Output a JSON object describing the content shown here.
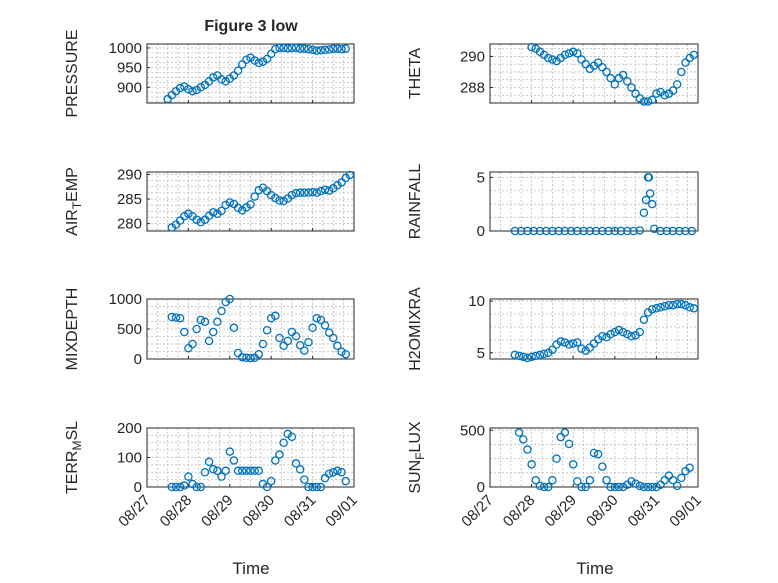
{
  "figure": {
    "title": "Figure 3 low",
    "xlabel": "Time",
    "x_ticks": [
      "08/27",
      "08/28",
      "08/29",
      "08/30",
      "08/31",
      "09/01"
    ]
  },
  "chart_data": [
    {
      "type": "scatter",
      "title": "Figure 3 low",
      "ylabel": "PRESSURE",
      "x_range": [
        "08/27",
        "09/01"
      ],
      "ylim": [
        860,
        1010
      ],
      "yticks": [
        900,
        950,
        1000
      ],
      "grid": true,
      "marker": "circle",
      "color": "#0072bd",
      "x": [
        0.5,
        0.6,
        0.7,
        0.8,
        0.9,
        1.0,
        1.1,
        1.2,
        1.3,
        1.4,
        1.5,
        1.6,
        1.7,
        1.8,
        1.9,
        2.0,
        2.1,
        2.2,
        2.3,
        2.4,
        2.5,
        2.6,
        2.7,
        2.8,
        2.9,
        3.0,
        3.1,
        3.2,
        3.3,
        3.4,
        3.5,
        3.6,
        3.7,
        3.8,
        3.9,
        4.0,
        4.1,
        4.2,
        4.3,
        4.4,
        4.5,
        4.6,
        4.7,
        4.8
      ],
      "y": [
        870,
        880,
        890,
        898,
        902,
        895,
        890,
        893,
        900,
        906,
        915,
        925,
        930,
        920,
        915,
        922,
        930,
        942,
        958,
        970,
        975,
        968,
        962,
        965,
        972,
        985,
        997,
        1000,
        1000,
        999,
        1000,
        1000,
        998,
        998,
        997,
        995,
        993,
        994,
        995,
        996,
        998,
        998,
        997,
        998
      ]
    },
    {
      "type": "scatter",
      "ylabel": "THETA",
      "x_range": [
        "08/27",
        "09/01"
      ],
      "ylim": [
        287,
        290.8
      ],
      "yticks": [
        288,
        290
      ],
      "grid": true,
      "marker": "circle",
      "color": "#0072bd",
      "x": [
        1.0,
        1.1,
        1.2,
        1.3,
        1.4,
        1.5,
        1.6,
        1.7,
        1.8,
        1.9,
        2.0,
        2.1,
        2.2,
        2.3,
        2.4,
        2.5,
        2.6,
        2.7,
        2.8,
        2.9,
        3.0,
        3.1,
        3.2,
        3.3,
        3.4,
        3.5,
        3.6,
        3.7,
        3.8,
        3.9,
        4.0,
        4.1,
        4.2,
        4.3,
        4.4,
        4.5,
        4.6,
        4.7,
        4.8,
        4.9
      ],
      "y": [
        290.6,
        290.5,
        290.3,
        290.1,
        289.9,
        289.8,
        289.7,
        289.9,
        290.1,
        290.2,
        290.3,
        290.2,
        289.8,
        289.5,
        289.2,
        289.4,
        289.6,
        289.3,
        289.0,
        288.6,
        288.2,
        288.6,
        288.8,
        288.4,
        288.0,
        287.6,
        287.3,
        287.1,
        287.1,
        287.2,
        287.6,
        287.7,
        287.5,
        287.6,
        287.8,
        288.2,
        289.0,
        289.6,
        289.9,
        290.1
      ]
    },
    {
      "type": "scatter",
      "ylabel": "AIR_TEMP",
      "x_range": [
        "08/27",
        "09/01"
      ],
      "ylim": [
        278.5,
        290.5
      ],
      "yticks": [
        280,
        285,
        290
      ],
      "grid": true,
      "marker": "circle",
      "color": "#0072bd",
      "x": [
        0.6,
        0.7,
        0.8,
        0.9,
        1.0,
        1.1,
        1.2,
        1.3,
        1.4,
        1.5,
        1.6,
        1.7,
        1.8,
        1.9,
        2.0,
        2.1,
        2.2,
        2.3,
        2.4,
        2.5,
        2.6,
        2.7,
        2.8,
        2.9,
        3.0,
        3.1,
        3.2,
        3.3,
        3.4,
        3.5,
        3.6,
        3.7,
        3.8,
        3.9,
        4.0,
        4.1,
        4.2,
        4.3,
        4.4,
        4.5,
        4.6,
        4.7,
        4.8,
        4.9
      ],
      "y": [
        279.2,
        279.8,
        280.6,
        281.5,
        282.0,
        281.5,
        280.8,
        280.3,
        280.8,
        281.6,
        282.3,
        282.0,
        282.6,
        283.8,
        284.3,
        284.0,
        283.2,
        282.7,
        283.3,
        283.9,
        285.5,
        286.8,
        287.3,
        286.6,
        285.8,
        285.2,
        284.7,
        284.6,
        285.1,
        285.8,
        286.2,
        286.3,
        286.3,
        286.3,
        286.4,
        286.3,
        286.6,
        286.9,
        286.7,
        287.2,
        287.8,
        288.4,
        289.3,
        289.9
      ]
    },
    {
      "type": "scatter",
      "ylabel": "RAINFALL",
      "x_range": [
        "08/27",
        "09/01"
      ],
      "ylim": [
        0,
        5.5
      ],
      "yticks": [
        0,
        5
      ],
      "grid": true,
      "marker": "circle",
      "color": "#0072bd",
      "x": [
        0.6,
        0.75,
        0.9,
        1.05,
        1.2,
        1.35,
        1.5,
        1.65,
        1.8,
        1.95,
        2.1,
        2.25,
        2.4,
        2.55,
        2.7,
        2.85,
        3.0,
        3.15,
        3.3,
        3.45,
        3.6,
        3.7,
        3.75,
        3.8,
        3.82,
        3.85,
        3.9,
        3.95,
        4.1,
        4.25,
        4.4,
        4.55,
        4.7,
        4.85
      ],
      "y": [
        0,
        0,
        0,
        0,
        0,
        0,
        0,
        0,
        0,
        0,
        0,
        0,
        0,
        0,
        0,
        0,
        0,
        0,
        0,
        0,
        0.05,
        1.7,
        2.9,
        5.0,
        5.0,
        3.5,
        2.5,
        0.2,
        0,
        0,
        0,
        0,
        0,
        0
      ]
    },
    {
      "type": "scatter",
      "ylabel": "MIXDEPTH",
      "x_range": [
        "08/27",
        "09/01"
      ],
      "ylim": [
        0,
        1000
      ],
      "yticks": [
        0,
        500,
        1000
      ],
      "grid": true,
      "marker": "circle",
      "color": "#0072bd",
      "x": [
        0.6,
        0.7,
        0.8,
        0.9,
        1.0,
        1.1,
        1.2,
        1.3,
        1.4,
        1.5,
        1.6,
        1.7,
        1.8,
        1.9,
        2.0,
        2.1,
        2.2,
        2.3,
        2.4,
        2.5,
        2.6,
        2.7,
        2.8,
        2.9,
        3.0,
        3.1,
        3.2,
        3.3,
        3.4,
        3.5,
        3.6,
        3.7,
        3.8,
        3.9,
        4.0,
        4.1,
        4.2,
        4.3,
        4.4,
        4.5,
        4.6,
        4.7,
        4.8
      ],
      "y": [
        700,
        690,
        680,
        450,
        180,
        250,
        500,
        650,
        620,
        300,
        450,
        620,
        800,
        950,
        1000,
        520,
        100,
        30,
        20,
        15,
        20,
        80,
        250,
        480,
        680,
        720,
        350,
        220,
        300,
        450,
        380,
        230,
        140,
        280,
        520,
        680,
        650,
        560,
        440,
        350,
        220,
        120,
        80
      ]
    },
    {
      "type": "scatter",
      "ylabel": "H2OMIXRA",
      "x_range": [
        "08/27",
        "09/01"
      ],
      "ylim": [
        4.4,
        10.2
      ],
      "yticks": [
        5,
        10
      ],
      "grid": true,
      "marker": "circle",
      "color": "#0072bd",
      "x": [
        0.6,
        0.7,
        0.8,
        0.9,
        1.0,
        1.1,
        1.2,
        1.3,
        1.4,
        1.5,
        1.6,
        1.7,
        1.8,
        1.9,
        2.0,
        2.1,
        2.2,
        2.3,
        2.4,
        2.5,
        2.6,
        2.7,
        2.8,
        2.9,
        3.0,
        3.1,
        3.2,
        3.3,
        3.4,
        3.5,
        3.6,
        3.7,
        3.8,
        3.9,
        4.0,
        4.1,
        4.2,
        4.3,
        4.4,
        4.5,
        4.6,
        4.7,
        4.8,
        4.9
      ],
      "y": [
        4.8,
        4.7,
        4.6,
        4.5,
        4.6,
        4.7,
        4.8,
        4.9,
        5.0,
        5.3,
        5.8,
        6.1,
        6.0,
        5.8,
        5.9,
        6.0,
        5.4,
        5.2,
        5.5,
        5.9,
        6.3,
        6.6,
        6.5,
        6.8,
        7.0,
        7.2,
        7.0,
        6.8,
        6.6,
        6.7,
        7.0,
        8.2,
        8.9,
        9.2,
        9.3,
        9.4,
        9.5,
        9.6,
        9.6,
        9.7,
        9.7,
        9.6,
        9.4,
        9.3
      ]
    },
    {
      "type": "scatter",
      "ylabel": "TERR_MSL",
      "x_range": [
        "08/27",
        "09/01"
      ],
      "ylim": [
        0,
        200
      ],
      "yticks": [
        0,
        100,
        200
      ],
      "grid": true,
      "marker": "circle",
      "color": "#0072bd",
      "x": [
        0.6,
        0.7,
        0.8,
        0.9,
        1.0,
        1.1,
        1.2,
        1.3,
        1.4,
        1.5,
        1.6,
        1.7,
        1.8,
        1.9,
        2.0,
        2.1,
        2.2,
        2.3,
        2.4,
        2.5,
        2.6,
        2.7,
        2.8,
        2.9,
        3.0,
        3.1,
        3.2,
        3.3,
        3.4,
        3.5,
        3.6,
        3.7,
        3.8,
        3.9,
        4.0,
        4.1,
        4.2,
        4.3,
        4.4,
        4.5,
        4.6,
        4.7,
        4.8
      ],
      "y": [
        0,
        0,
        0,
        5,
        35,
        10,
        0,
        0,
        50,
        85,
        60,
        55,
        35,
        55,
        120,
        90,
        55,
        55,
        55,
        55,
        55,
        55,
        10,
        0,
        20,
        90,
        110,
        150,
        180,
        170,
        80,
        60,
        25,
        0,
        0,
        0,
        0,
        30,
        45,
        50,
        55,
        50,
        20
      ]
    },
    {
      "type": "scatter",
      "ylabel": "SUN_FLUX",
      "x_range": [
        "08/27",
        "09/01"
      ],
      "ylim": [
        0,
        520
      ],
      "yticks": [
        0,
        500
      ],
      "grid": true,
      "marker": "circle",
      "color": "#0072bd",
      "x": [
        0.7,
        0.8,
        0.9,
        1.0,
        1.1,
        1.2,
        1.3,
        1.4,
        1.5,
        1.6,
        1.7,
        1.8,
        1.9,
        2.0,
        2.1,
        2.2,
        2.3,
        2.4,
        2.5,
        2.6,
        2.7,
        2.8,
        2.9,
        3.0,
        3.1,
        3.2,
        3.3,
        3.4,
        3.5,
        3.6,
        3.7,
        3.8,
        3.9,
        4.0,
        4.1,
        4.2,
        4.3,
        4.4,
        4.5,
        4.6,
        4.7,
        4.8
      ],
      "y": [
        480,
        420,
        330,
        200,
        60,
        10,
        0,
        0,
        60,
        250,
        440,
        480,
        380,
        200,
        50,
        0,
        0,
        60,
        300,
        290,
        180,
        60,
        0,
        0,
        0,
        0,
        20,
        50,
        30,
        10,
        0,
        0,
        0,
        0,
        20,
        60,
        100,
        60,
        10,
        80,
        140,
        170
      ]
    }
  ]
}
